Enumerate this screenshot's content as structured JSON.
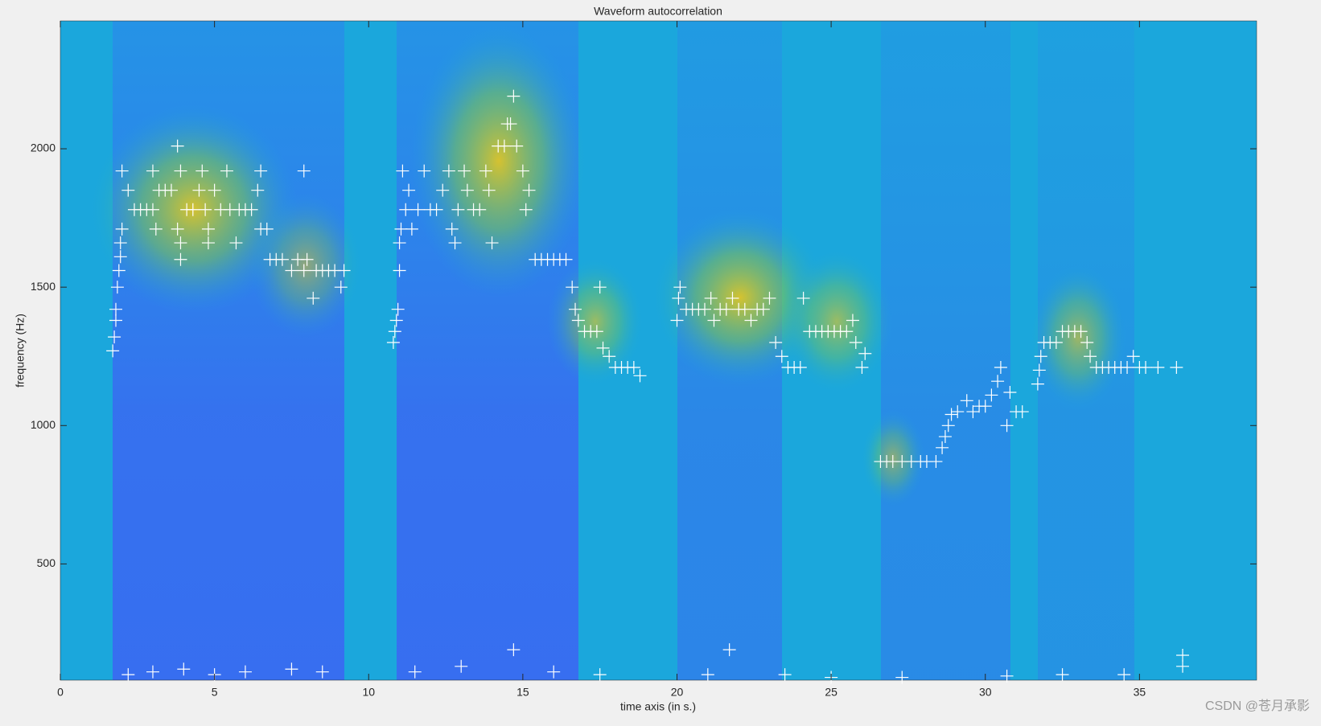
{
  "chart_data": {
    "type": "scatter",
    "title": "Waveform autocorrelation",
    "x_label": "time axis (in s.)",
    "y_label": "frequency (Hz)",
    "watermark": "CSDN @苍月承影",
    "color": "#ffffff",
    "grid": false,
    "xlim": [
      0,
      38.8
    ],
    "ylim": [
      80,
      2462
    ],
    "xticks": [
      0,
      5,
      10,
      15,
      20,
      25,
      30,
      35
    ],
    "yticks": [
      500,
      1000,
      1500,
      2000
    ],
    "x": [
      1.7,
      1.75,
      1.8,
      1.8,
      1.85,
      1.9,
      1.95,
      1.95,
      2.0,
      2.0,
      2.2,
      2.4,
      2.6,
      2.8,
      3.0,
      3.2,
      3.4,
      3.6,
      3.0,
      3.1,
      3.8,
      3.8,
      3.9,
      3.9,
      3.9,
      4.1,
      4.3,
      4.5,
      4.6,
      4.7,
      4.8,
      4.8,
      5.0,
      5.2,
      5.4,
      5.5,
      5.7,
      5.8,
      6.0,
      6.2,
      6.4,
      6.5,
      6.5,
      6.7,
      6.8,
      7.0,
      7.2,
      7.5,
      7.7,
      7.9,
      8.0,
      8.2,
      8.3,
      8.5,
      8.7,
      8.9,
      7.9,
      9.1,
      9.2,
      10.8,
      10.85,
      10.9,
      10.95,
      11.0,
      11.0,
      11.05,
      11.1,
      11.2,
      11.3,
      11.4,
      11.6,
      11.8,
      12.0,
      12.2,
      12.4,
      12.6,
      12.7,
      12.8,
      12.9,
      13.1,
      13.2,
      13.4,
      13.6,
      13.8,
      13.9,
      14.0,
      14.2,
      14.4,
      14.5,
      14.6,
      14.7,
      14.8,
      15.0,
      15.1,
      15.2,
      15.4,
      15.6,
      15.8,
      16.0,
      16.2,
      16.4,
      16.6,
      16.7,
      16.8,
      17.0,
      17.2,
      17.4,
      17.5,
      17.6,
      17.8,
      18.0,
      18.2,
      18.4,
      18.6,
      18.8,
      20.0,
      20.05,
      20.1,
      20.3,
      20.5,
      20.7,
      20.9,
      21.1,
      21.2,
      21.4,
      21.6,
      21.8,
      22.0,
      22.2,
      22.4,
      22.6,
      22.8,
      23.0,
      23.2,
      23.4,
      23.6,
      23.8,
      24.0,
      24.1,
      24.3,
      24.5,
      24.7,
      24.9,
      25.1,
      25.3,
      25.5,
      25.7,
      25.8,
      26.0,
      26.1,
      26.6,
      26.8,
      27.0,
      27.3,
      27.6,
      27.9,
      28.1,
      28.4,
      28.6,
      28.7,
      28.8,
      28.9,
      29.1,
      29.4,
      29.6,
      29.8,
      30.0,
      30.2,
      30.4,
      30.5,
      30.7,
      30.8,
      31.0,
      31.2,
      31.7,
      31.75,
      31.8,
      31.9,
      32.1,
      32.3,
      32.5,
      32.7,
      32.9,
      33.1,
      33.3,
      33.4,
      33.6,
      33.8,
      34.0,
      34.2,
      34.4,
      34.6,
      34.8,
      35.0,
      35.2,
      35.6,
      36.2,
      2.2,
      3.0,
      4.0,
      5.0,
      6.0,
      7.5,
      8.5,
      11.5,
      13.0,
      14.7,
      16.0,
      17.5,
      21.0,
      21.7,
      23.5,
      25.0,
      27.3,
      30.7,
      32.5,
      34.5,
      36.4,
      36.4
    ],
    "y": [
      1270,
      1320,
      1380,
      1420,
      1500,
      1560,
      1610,
      1660,
      1710,
      1920,
      1850,
      1780,
      1780,
      1780,
      1780,
      1850,
      1850,
      1850,
      1920,
      1710,
      2010,
      1710,
      1660,
      1600,
      1920,
      1780,
      1780,
      1850,
      1920,
      1780,
      1710,
      1660,
      1850,
      1780,
      1920,
      1780,
      1660,
      1780,
      1780,
      1780,
      1850,
      1920,
      1710,
      1710,
      1600,
      1600,
      1600,
      1560,
      1600,
      1560,
      1600,
      1460,
      1560,
      1560,
      1560,
      1560,
      1920,
      1500,
      1560,
      1300,
      1340,
      1380,
      1420,
      1560,
      1660,
      1710,
      1920,
      1780,
      1850,
      1710,
      1780,
      1920,
      1780,
      1780,
      1850,
      1920,
      1710,
      1660,
      1780,
      1920,
      1850,
      1780,
      1780,
      1920,
      1850,
      1660,
      2010,
      2010,
      2090,
      2090,
      2190,
      2010,
      1920,
      1780,
      1850,
      1600,
      1600,
      1600,
      1600,
      1600,
      1600,
      1500,
      1420,
      1380,
      1340,
      1340,
      1340,
      1500,
      1280,
      1250,
      1210,
      1210,
      1210,
      1210,
      1180,
      1380,
      1460,
      1500,
      1420,
      1420,
      1420,
      1420,
      1460,
      1380,
      1420,
      1420,
      1460,
      1420,
      1420,
      1380,
      1420,
      1420,
      1460,
      1300,
      1250,
      1210,
      1210,
      1210,
      1460,
      1340,
      1340,
      1340,
      1340,
      1340,
      1340,
      1340,
      1380,
      1300,
      1210,
      1260,
      870,
      870,
      870,
      870,
      870,
      870,
      870,
      870,
      920,
      960,
      1000,
      1040,
      1050,
      1090,
      1050,
      1070,
      1070,
      1110,
      1160,
      1210,
      1000,
      1120,
      1050,
      1050,
      1150,
      1200,
      1250,
      1300,
      1300,
      1300,
      1340,
      1340,
      1340,
      1340,
      1300,
      1250,
      1210,
      1210,
      1210,
      1210,
      1210,
      1210,
      1250,
      1210,
      1210,
      1210,
      1210,
      100,
      110,
      120,
      100,
      110,
      120,
      110,
      110,
      130,
      190,
      110,
      100,
      100,
      190,
      100,
      90,
      90,
      95,
      100,
      100,
      170,
      130
    ]
  }
}
